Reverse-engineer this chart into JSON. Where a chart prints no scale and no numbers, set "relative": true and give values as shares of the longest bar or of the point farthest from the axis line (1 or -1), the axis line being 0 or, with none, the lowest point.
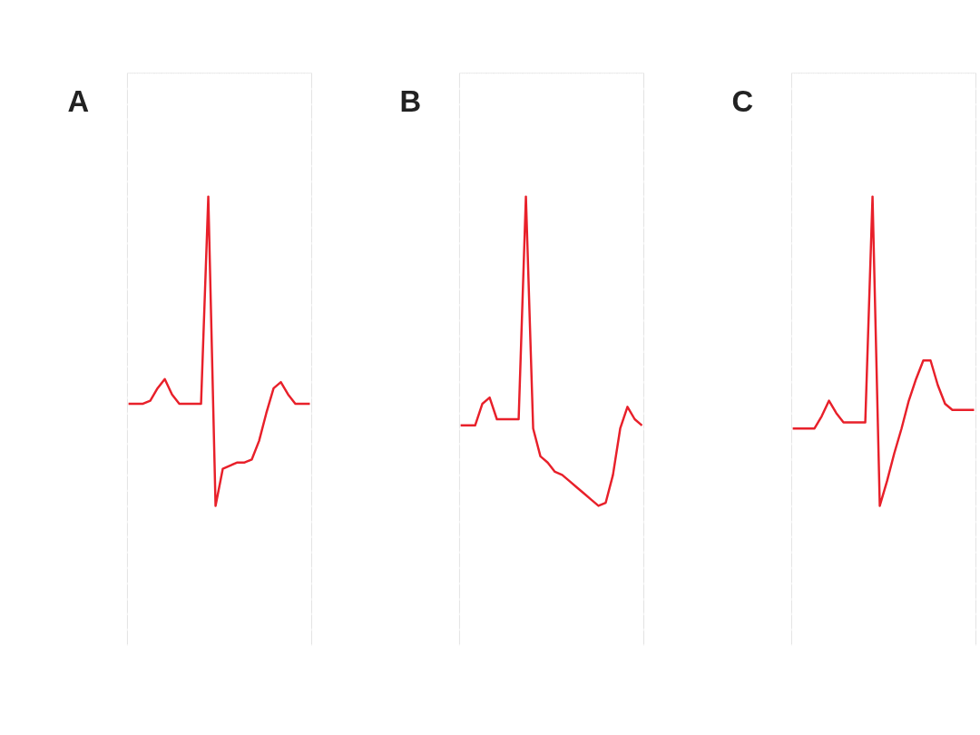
{
  "chart_data": [
    {
      "type": "line",
      "title": "A",
      "relative": true,
      "grid": true,
      "tick_labels": false,
      "categories": [
        null,
        null,
        null,
        null,
        null,
        null,
        null,
        null,
        null,
        null,
        null,
        null,
        null,
        null,
        null,
        null,
        null,
        null,
        null,
        null,
        null,
        null,
        null,
        null,
        null,
        null
      ],
      "series": [
        {
          "color": "#e8202a",
          "values": [
            0.33,
            0.33,
            0.33,
            0.34,
            0.38,
            0.41,
            0.36,
            0.33,
            0.33,
            0.33,
            0.33,
            1,
            0,
            0.12,
            0.13,
            0.14,
            0.14,
            0.15,
            0.21,
            0.3,
            0.38,
            0.4,
            0.36,
            0.33,
            0.33,
            0.33
          ]
        }
      ]
    },
    {
      "type": "line",
      "title": "B",
      "relative": true,
      "grid": true,
      "tick_labels": false,
      "categories": [
        null,
        null,
        null,
        null,
        null,
        null,
        null,
        null,
        null,
        null,
        null,
        null,
        null,
        null,
        null,
        null,
        null,
        null,
        null,
        null,
        null,
        null,
        null,
        null,
        null,
        null
      ],
      "series": [
        {
          "color": "#e8202a",
          "values": [
            0.26,
            0.26,
            0.26,
            0.33,
            0.35,
            0.28,
            0.28,
            0.28,
            0.28,
            1,
            0.25,
            0.16,
            0.14,
            0.11,
            0.1,
            0.08,
            0.06,
            0.04,
            0.02,
            0,
            0.01,
            0.1,
            0.25,
            0.32,
            0.28,
            0.26
          ]
        }
      ]
    },
    {
      "type": "line",
      "title": "C",
      "relative": true,
      "grid": true,
      "tick_labels": false,
      "categories": [
        null,
        null,
        null,
        null,
        null,
        null,
        null,
        null,
        null,
        null,
        null,
        null,
        null,
        null,
        null,
        null,
        null,
        null,
        null,
        null,
        null,
        null,
        null,
        null,
        null,
        null
      ],
      "series": [
        {
          "color": "#e8202a",
          "values": [
            0.25,
            0.25,
            0.25,
            0.25,
            0.29,
            0.34,
            0.3,
            0.27,
            0.27,
            0.27,
            0.27,
            1,
            0,
            0.08,
            0.17,
            0.25,
            0.34,
            0.41,
            0.47,
            0.47,
            0.39,
            0.33,
            0.31,
            0.31,
            0.31,
            0.31
          ]
        }
      ]
    }
  ]
}
